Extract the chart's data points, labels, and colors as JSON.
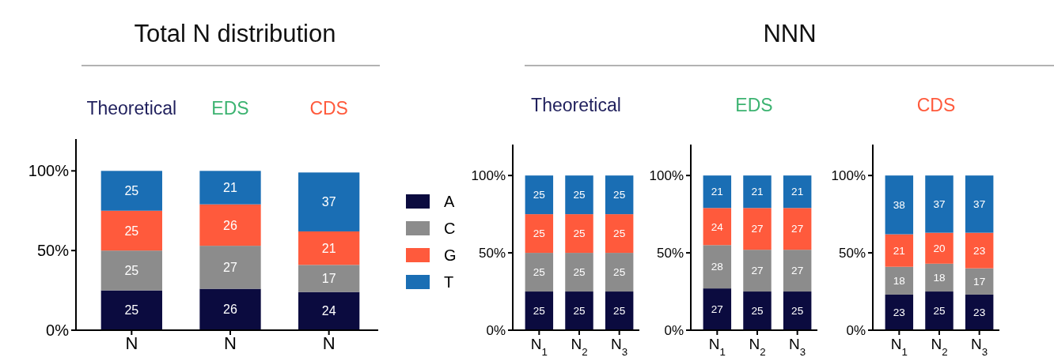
{
  "chart_data": [
    {
      "type": "bar",
      "title": "Total N distribution",
      "annotations": [
        "Theoretical",
        "EDS",
        "CDS"
      ],
      "categories": [
        "N",
        "N",
        "N"
      ],
      "stacked": true,
      "data_labels": true,
      "legend": "right",
      "ylim": [
        0,
        120
      ],
      "yticks": [
        {
          "value": 0,
          "label": "0%"
        },
        {
          "value": 50,
          "label": "50%"
        },
        {
          "value": 100,
          "label": "100%"
        }
      ],
      "series": [
        {
          "name": "A",
          "color": "#0b0b3f",
          "values": [
            25,
            26,
            24
          ]
        },
        {
          "name": "C",
          "color": "#8c8c8c",
          "values": [
            25,
            27,
            17
          ]
        },
        {
          "name": "G",
          "color": "#ff5a3c",
          "values": [
            25,
            26,
            21
          ]
        },
        {
          "name": "T",
          "color": "#1a6eb4",
          "values": [
            25,
            21,
            37
          ]
        }
      ]
    },
    {
      "type": "bar",
      "title": "Theoretical",
      "annotations": [
        "NNN"
      ],
      "categories": [
        "N$_{1}$",
        "N$_{2}$",
        "N$_{3}$"
      ],
      "stacked": true,
      "data_labels": true,
      "ylim": [
        0,
        120
      ],
      "yticks": [
        {
          "value": 0,
          "label": "0%"
        },
        {
          "value": 50,
          "label": "50%"
        },
        {
          "value": 100,
          "label": "100%"
        }
      ],
      "series": [
        {
          "color": "#0b0b3f",
          "values": [
            25,
            25,
            25
          ]
        },
        {
          "color": "#8c8c8c",
          "values": [
            25,
            25,
            25
          ]
        },
        {
          "color": "#ff5a3c",
          "values": [
            25,
            25,
            25
          ]
        },
        {
          "color": "#1a6eb4",
          "values": [
            25,
            25,
            25
          ]
        }
      ]
    },
    {
      "type": "bar",
      "title": "EDS",
      "categories": [
        "N$_{1}$",
        "N$_{2}$",
        "N$_{3}$"
      ],
      "stacked": true,
      "data_labels": true,
      "ylim": [
        0,
        120
      ],
      "yticks": [
        {
          "value": 0,
          "label": "0%"
        },
        {
          "value": 50,
          "label": "50%"
        },
        {
          "value": 100,
          "label": "100%"
        }
      ],
      "series": [
        {
          "color": "#0b0b3f",
          "values": [
            27,
            25,
            25
          ]
        },
        {
          "color": "#8c8c8c",
          "values": [
            28,
            27,
            27
          ]
        },
        {
          "color": "#ff5a3c",
          "values": [
            24,
            27,
            27
          ]
        },
        {
          "color": "#1a6eb4",
          "values": [
            21,
            21,
            21
          ]
        }
      ]
    },
    {
      "type": "bar",
      "title": "CDS",
      "categories": [
        "N$_{1}$",
        "N$_{2}$",
        "N$_{3}$"
      ],
      "stacked": true,
      "data_labels": true,
      "ylim": [
        0,
        120
      ],
      "yticks": [
        {
          "value": 0,
          "label": "0%"
        },
        {
          "value": 50,
          "label": "50%"
        },
        {
          "value": 100,
          "label": "100%"
        }
      ],
      "series": [
        {
          "color": "#0b0b3f",
          "values": [
            23,
            25,
            23
          ]
        },
        {
          "color": "#8c8c8c",
          "values": [
            18,
            18,
            17
          ]
        },
        {
          "color": "#ff5a3c",
          "values": [
            21,
            20,
            23
          ]
        },
        {
          "color": "#1a6eb4",
          "values": [
            38,
            37,
            37
          ]
        }
      ]
    }
  ]
}
